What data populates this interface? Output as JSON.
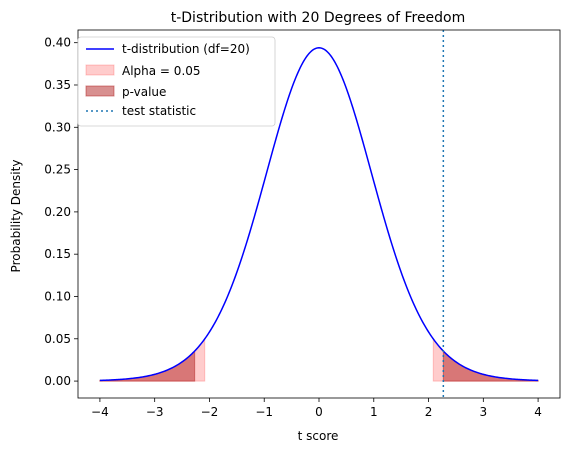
{
  "chart_data": {
    "type": "line",
    "title": "t-Distribution with 20 Degrees of Freedom",
    "xlabel": "t score",
    "ylabel": "Probability Density",
    "xlim": [
      -4.4,
      4.4
    ],
    "ylim": [
      -0.02,
      0.415
    ],
    "xticks": [
      -4,
      -3,
      -2,
      -1,
      0,
      1,
      2,
      3,
      4
    ],
    "xtick_labels": [
      "−4",
      "−3",
      "−2",
      "−1",
      "0",
      "1",
      "2",
      "3",
      "4"
    ],
    "yticks": [
      0.0,
      0.05,
      0.1,
      0.15,
      0.2,
      0.25,
      0.3,
      0.35,
      0.4
    ],
    "ytick_labels": [
      "0.00",
      "0.05",
      "0.10",
      "0.15",
      "0.20",
      "0.25",
      "0.30",
      "0.35",
      "0.40"
    ],
    "df": 20,
    "x_range": [
      -4,
      4
    ],
    "alpha": 0.05,
    "critical_value": 2.086,
    "test_statistic": 2.27,
    "grid": false,
    "legend_position": "upper-left",
    "series": [
      {
        "name": "t-distribution (df=20)",
        "kind": "line",
        "color": "#0000ff"
      },
      {
        "name": "Alpha = 0.05",
        "kind": "fill",
        "color": "#ff0000",
        "opacity": 0.2,
        "regions": [
          [
            -4,
            -2.086
          ],
          [
            2.086,
            4
          ]
        ]
      },
      {
        "name": "p-value",
        "kind": "fill",
        "color": "#b22222",
        "opacity": 0.5,
        "regions": [
          [
            -4,
            -2.27
          ],
          [
            2.27,
            4
          ]
        ]
      },
      {
        "name": "test statistic",
        "kind": "vline",
        "color": "#1f77b4",
        "x": 2.27,
        "dash": "dotted"
      }
    ]
  }
}
